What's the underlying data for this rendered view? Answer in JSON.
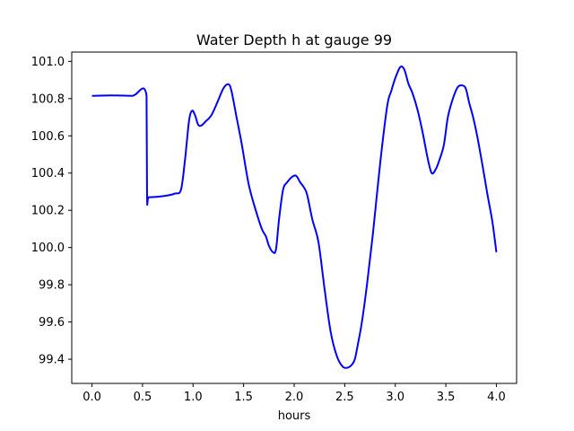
{
  "chart_data": {
    "type": "line",
    "title": "Water Depth h at gauge 99",
    "xlabel": "hours",
    "ylabel": "",
    "xlim": [
      -0.2,
      4.2
    ],
    "ylim": [
      99.27,
      101.05
    ],
    "xticks": [
      0.0,
      0.5,
      1.0,
      1.5,
      2.0,
      2.5,
      3.0,
      3.5,
      4.0
    ],
    "xtick_labels": [
      "0.0",
      "0.5",
      "1.0",
      "1.5",
      "2.0",
      "2.5",
      "3.0",
      "3.5",
      "4.0"
    ],
    "yticks": [
      99.4,
      99.6,
      99.8,
      100.0,
      100.2,
      100.4,
      100.6,
      100.8,
      101.0
    ],
    "ytick_labels": [
      "99.4",
      "99.6",
      "99.8",
      "100.0",
      "100.2",
      "100.4",
      "100.6",
      "100.8",
      "101.0"
    ],
    "grid": false,
    "series": [
      {
        "color": "#0000ff",
        "x": [
          0.0,
          0.2,
          0.4,
          0.54,
          0.545,
          0.56,
          0.65,
          0.75,
          0.82,
          0.88,
          0.92,
          0.96,
          0.99,
          1.02,
          1.05,
          1.08,
          1.12,
          1.18,
          1.24,
          1.3,
          1.35,
          1.38,
          1.43,
          1.48,
          1.55,
          1.62,
          1.68,
          1.72,
          1.75,
          1.79,
          1.82,
          1.85,
          1.89,
          1.93,
          1.98,
          2.02,
          2.06,
          2.1,
          2.13,
          2.18,
          2.24,
          2.3,
          2.36,
          2.42,
          2.48,
          2.53,
          2.57,
          2.6,
          2.63,
          2.67,
          2.72,
          2.78,
          2.85,
          2.92,
          2.96,
          3.0,
          3.05,
          3.09,
          3.13,
          3.17,
          3.22,
          3.27,
          3.32,
          3.36,
          3.4,
          3.43,
          3.48,
          3.52,
          3.57,
          3.62,
          3.67,
          3.7,
          3.73,
          3.77,
          3.81,
          3.86,
          3.91,
          3.96,
          4.0
        ],
        "values": [
          100.815,
          100.817,
          100.815,
          100.815,
          100.27,
          100.27,
          100.273,
          100.28,
          100.29,
          100.31,
          100.47,
          100.68,
          100.735,
          100.71,
          100.66,
          100.655,
          100.675,
          100.71,
          100.78,
          100.855,
          100.877,
          100.84,
          100.7,
          100.56,
          100.34,
          100.2,
          100.1,
          100.06,
          100.01,
          99.975,
          99.99,
          100.15,
          100.31,
          100.35,
          100.38,
          100.385,
          100.35,
          100.32,
          100.28,
          100.15,
          100.03,
          99.78,
          99.55,
          99.42,
          99.36,
          99.355,
          99.37,
          99.4,
          99.48,
          99.6,
          99.8,
          100.08,
          100.45,
          100.76,
          100.84,
          100.91,
          100.97,
          100.955,
          100.88,
          100.83,
          100.74,
          100.62,
          100.48,
          100.4,
          100.42,
          100.46,
          100.55,
          100.7,
          100.8,
          100.863,
          100.87,
          100.85,
          100.78,
          100.7,
          100.6,
          100.45,
          100.29,
          100.14,
          99.975
        ]
      }
    ]
  }
}
